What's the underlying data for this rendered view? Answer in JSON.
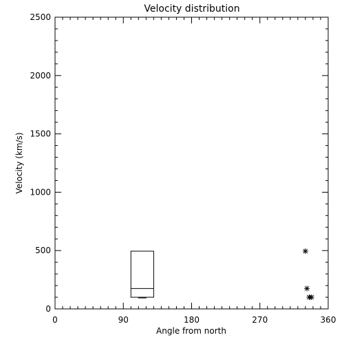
{
  "chart_data": {
    "type": "scatter",
    "title": "Velocity distribution",
    "xlabel": "Angle from north",
    "ylabel": "Velocity (km/s)",
    "xlim": [
      0,
      360
    ],
    "ylim": [
      0,
      2500
    ],
    "x_ticks": [
      0,
      90,
      180,
      270,
      360
    ],
    "y_ticks": [
      0,
      500,
      1000,
      1500,
      2000,
      2500
    ],
    "grid": false,
    "legend": "none",
    "box": {
      "x_range": [
        100,
        130
      ],
      "low": 100,
      "q1": 100,
      "median": 175,
      "q3": 495,
      "high": 495
    },
    "points": [
      {
        "x": 330,
        "y": 495
      },
      {
        "x": 332,
        "y": 175
      },
      {
        "x": 335,
        "y": 100
      },
      {
        "x": 338,
        "y": 100
      }
    ]
  }
}
